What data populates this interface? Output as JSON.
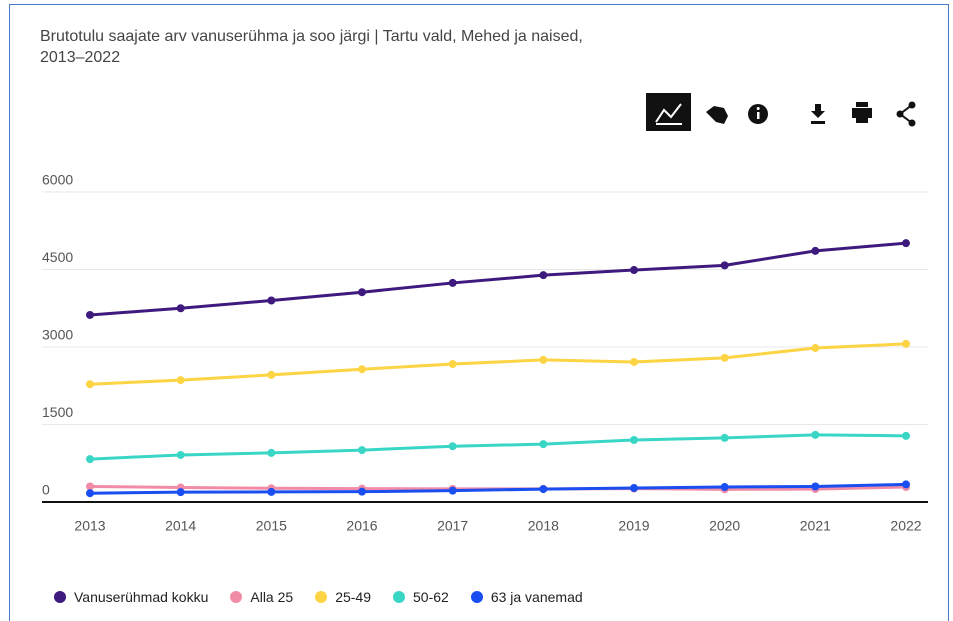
{
  "chart_data": {
    "type": "line",
    "title": "Brutotulu saajate arv vanuserühma ja soo järgi | Tartu vald, Mehed ja naised, 2013–2022",
    "categories": [
      "2013",
      "2014",
      "2015",
      "2016",
      "2017",
      "2018",
      "2019",
      "2020",
      "2021",
      "2022"
    ],
    "ylim": [
      0,
      6000
    ],
    "yticks": [
      0,
      1500,
      3000,
      4500,
      6000
    ],
    "grid": true,
    "legend": "bottom",
    "series": [
      {
        "name": "Vanuserühmad kokku",
        "color": "#3f1a7e",
        "values": [
          3620,
          3750,
          3900,
          4060,
          4240,
          4390,
          4490,
          4580,
          4860,
          5010
        ]
      },
      {
        "name": "Alla 25",
        "color": "#f28ca6",
        "values": [
          300,
          280,
          265,
          260,
          255,
          255,
          260,
          245,
          250,
          290
        ]
      },
      {
        "name": "25-49",
        "color": "#fdd444",
        "values": [
          2280,
          2360,
          2460,
          2570,
          2670,
          2750,
          2710,
          2790,
          2980,
          3060
        ]
      },
      {
        "name": "50-62",
        "color": "#3ad6c5",
        "values": [
          830,
          910,
          950,
          1005,
          1080,
          1120,
          1200,
          1240,
          1300,
          1280
        ]
      },
      {
        "name": "63 ja vanemad",
        "color": "#1a4ef0",
        "values": [
          170,
          190,
          195,
          200,
          220,
          250,
          270,
          290,
          300,
          340
        ]
      }
    ]
  }
}
